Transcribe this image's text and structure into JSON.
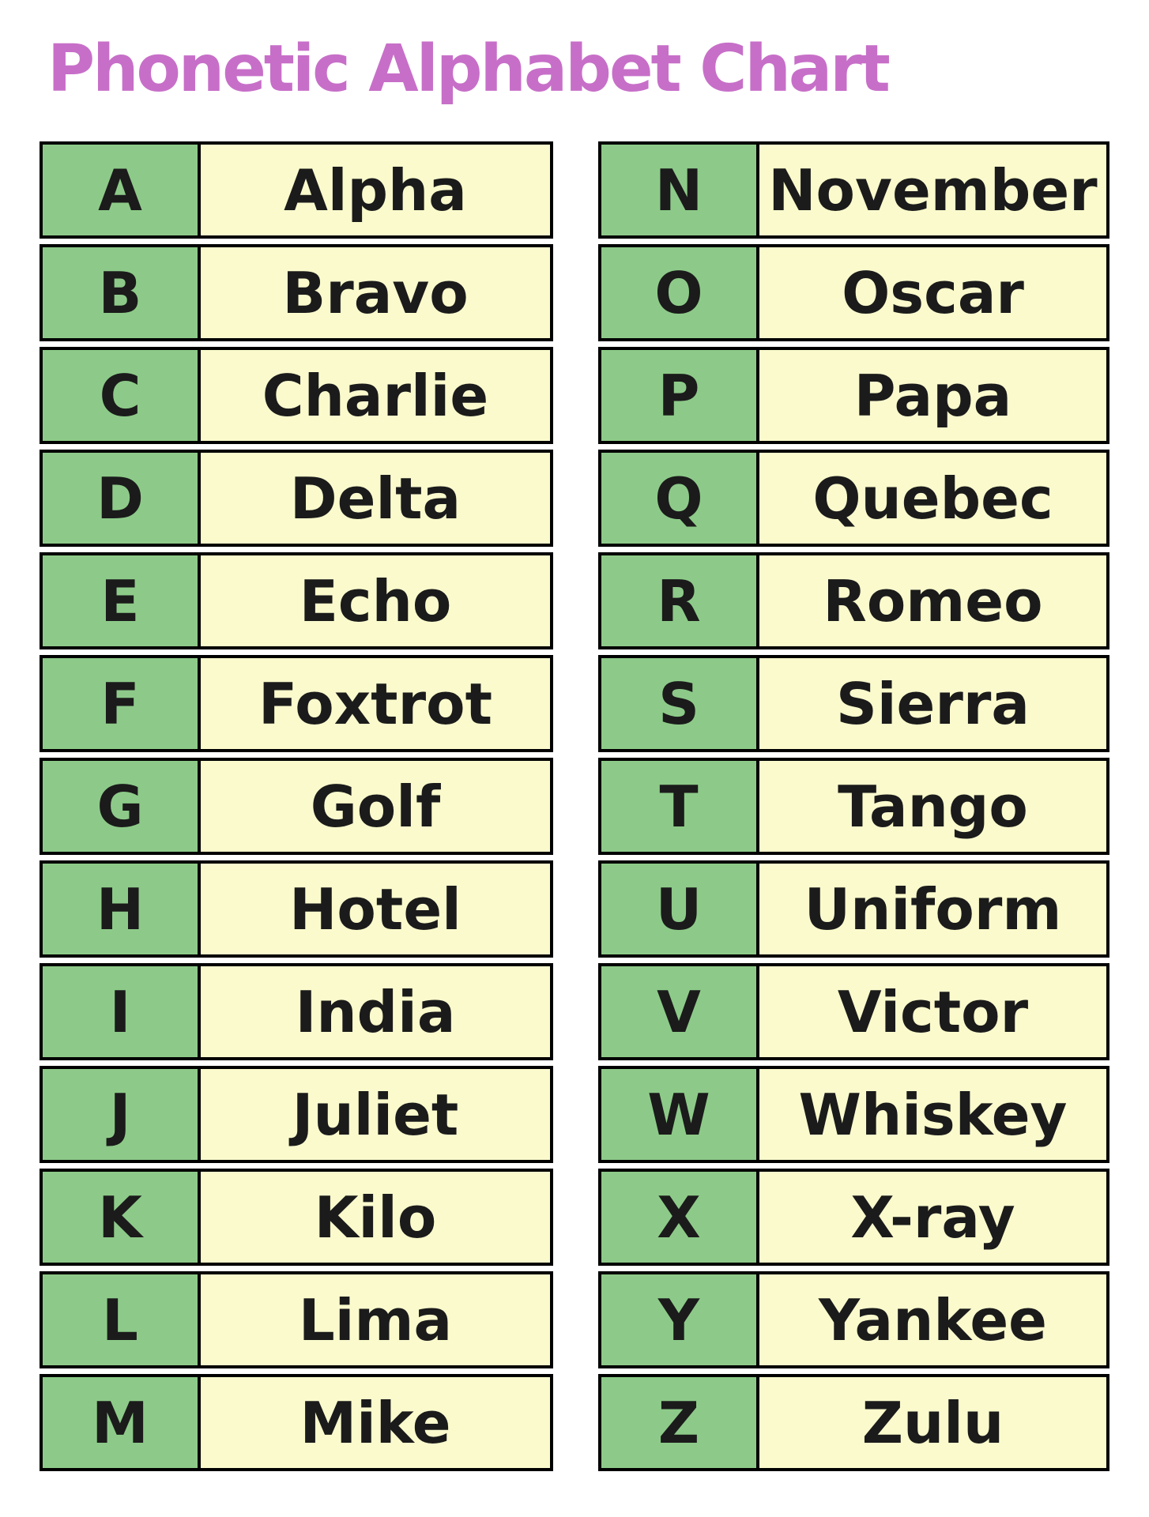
{
  "title": "Phonetic Alphabet Chart",
  "colors": {
    "title": "#c76fc8",
    "letter_bg": "#8dca89",
    "word_bg": "#fafacd",
    "border": "#000000",
    "text": "#1b1b1b",
    "page_bg": "#ffffff"
  },
  "table": {
    "left_column": [
      {
        "letter": "A",
        "word": "Alpha"
      },
      {
        "letter": "B",
        "word": "Bravo"
      },
      {
        "letter": "C",
        "word": "Charlie"
      },
      {
        "letter": "D",
        "word": "Delta"
      },
      {
        "letter": "E",
        "word": "Echo"
      },
      {
        "letter": "F",
        "word": "Foxtrot"
      },
      {
        "letter": "G",
        "word": "Golf"
      },
      {
        "letter": "H",
        "word": "Hotel"
      },
      {
        "letter": "I",
        "word": "India"
      },
      {
        "letter": "J",
        "word": "Juliet"
      },
      {
        "letter": "K",
        "word": "Kilo"
      },
      {
        "letter": "L",
        "word": "Lima"
      },
      {
        "letter": "M",
        "word": "Mike"
      }
    ],
    "right_column": [
      {
        "letter": "N",
        "word": "November"
      },
      {
        "letter": "O",
        "word": "Oscar"
      },
      {
        "letter": "P",
        "word": "Papa"
      },
      {
        "letter": "Q",
        "word": "Quebec"
      },
      {
        "letter": "R",
        "word": "Romeo"
      },
      {
        "letter": "S",
        "word": "Sierra"
      },
      {
        "letter": "T",
        "word": "Tango"
      },
      {
        "letter": "U",
        "word": "Uniform"
      },
      {
        "letter": "V",
        "word": "Victor"
      },
      {
        "letter": "W",
        "word": "Whiskey"
      },
      {
        "letter": "X",
        "word": "X-ray"
      },
      {
        "letter": "Y",
        "word": "Yankee"
      },
      {
        "letter": "Z",
        "word": "Zulu"
      }
    ]
  }
}
